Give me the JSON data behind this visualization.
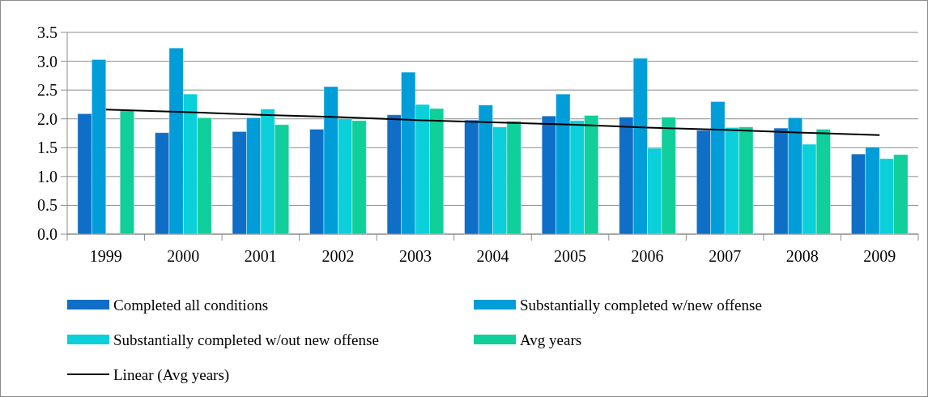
{
  "chart_data": {
    "type": "bar",
    "categories": [
      "1999",
      "2000",
      "2001",
      "2002",
      "2003",
      "2004",
      "2005",
      "2006",
      "2007",
      "2008",
      "2009"
    ],
    "series": [
      {
        "name": "Completed all conditions",
        "color": "#0f6fc6",
        "values": [
          2.09,
          1.76,
          1.78,
          1.82,
          2.07,
          1.98,
          2.05,
          2.03,
          1.8,
          1.84,
          1.39
        ]
      },
      {
        "name": "Substantially completed w/new offense",
        "color": "#009dd9",
        "values": [
          3.03,
          3.23,
          2.02,
          2.56,
          2.81,
          2.24,
          2.43,
          3.05,
          2.3,
          2.02,
          1.51
        ]
      },
      {
        "name": "Substantially completed w/out new offense",
        "color": "#0bd0d9",
        "values": [
          null,
          2.43,
          2.17,
          2.0,
          2.25,
          1.86,
          1.97,
          1.49,
          1.85,
          1.56,
          1.31
        ]
      },
      {
        "name": "Avg years",
        "color": "#10cf9b",
        "values": [
          2.14,
          2.02,
          1.9,
          1.97,
          2.18,
          1.96,
          2.06,
          2.03,
          1.86,
          1.82,
          1.38
        ]
      },
      {
        "name": "Linear (Avg years)",
        "type": "line",
        "color": "#000000",
        "values": [
          2.16,
          2.12,
          2.07,
          2.03,
          1.98,
          1.94,
          1.9,
          1.85,
          1.81,
          1.76,
          1.72
        ]
      }
    ],
    "ylim": [
      0,
      3.5
    ],
    "yticks": [
      {
        "value": 0,
        "label": "0.0"
      },
      {
        "value": 0.5,
        "label": "0.5"
      },
      {
        "value": 1,
        "label": "1.0"
      },
      {
        "value": 1.5,
        "label": "1.5"
      },
      {
        "value": 2,
        "label": "2.0"
      },
      {
        "value": 2.5,
        "label": "2.5"
      },
      {
        "value": 3,
        "label": "3.0"
      },
      {
        "value": 3.5,
        "label": "3.5"
      }
    ],
    "grid": "y",
    "legend": "bottom"
  }
}
